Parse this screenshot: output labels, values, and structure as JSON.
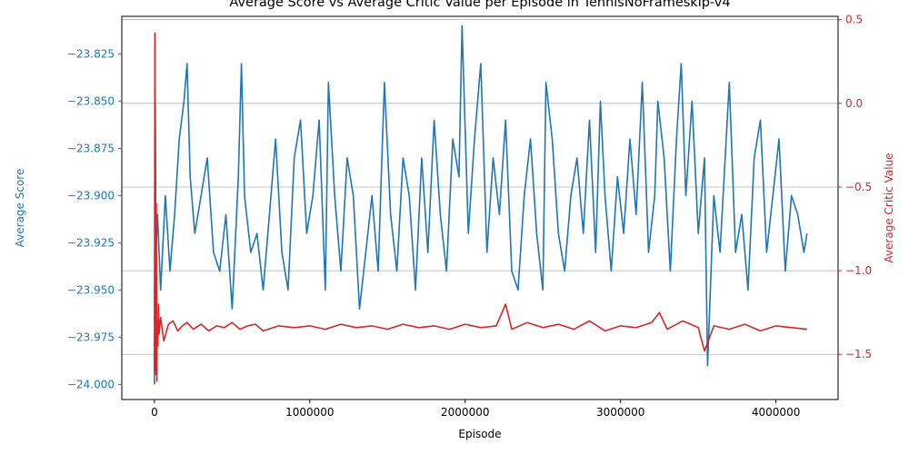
{
  "chart_data": {
    "type": "line",
    "title": "Average Score vs Average Critic Value per Episode in TennisNoFrameskip-v4",
    "xlabel": "Episode",
    "ylabel_left": "Average Score",
    "ylabel_right": "Average Critic Value",
    "xlim": [
      -210000,
      4400000
    ],
    "ylim_left": [
      -24.008,
      -23.805
    ],
    "ylim_right": [
      -1.77,
      0.52
    ],
    "x_ticks": [
      0,
      1000000,
      2000000,
      3000000,
      4000000
    ],
    "x_tick_labels": [
      "0",
      "1000000",
      "2000000",
      "3000000",
      "4000000"
    ],
    "y_left_ticks": [
      -23.825,
      -23.85,
      -23.875,
      -23.9,
      -23.925,
      -23.95,
      -23.975,
      -24.0
    ],
    "y_left_tick_labels": [
      "−23.825",
      "−23.850",
      "−23.875",
      "−23.900",
      "−23.925",
      "−23.950",
      "−23.975",
      "−24.000"
    ],
    "y_right_ticks": [
      0.5,
      0.0,
      -0.5,
      -1.0,
      -1.5
    ],
    "y_right_tick_labels": [
      "0.5",
      "0.0",
      "−0.5",
      "−1.0",
      "−1.5"
    ],
    "grid": "y-right",
    "colors": {
      "left": "#1f77b4",
      "right": "#d62728",
      "grid": "#b0b0b0"
    },
    "series": [
      {
        "axis": "left",
        "color": "#1f77b4",
        "x": [
          0,
          5000,
          10000,
          20000,
          40000,
          70000,
          100000,
          130000,
          160000,
          190000,
          210000,
          230000,
          260000,
          300000,
          340000,
          380000,
          420000,
          460000,
          500000,
          540000,
          560000,
          580000,
          620000,
          660000,
          700000,
          740000,
          780000,
          820000,
          860000,
          900000,
          940000,
          980000,
          1020000,
          1060000,
          1100000,
          1120000,
          1160000,
          1200000,
          1240000,
          1280000,
          1320000,
          1360000,
          1400000,
          1440000,
          1480000,
          1520000,
          1560000,
          1600000,
          1640000,
          1680000,
          1720000,
          1760000,
          1800000,
          1840000,
          1880000,
          1920000,
          1960000,
          1980000,
          2020000,
          2060000,
          2100000,
          2140000,
          2180000,
          2220000,
          2260000,
          2300000,
          2340000,
          2380000,
          2420000,
          2460000,
          2500000,
          2520000,
          2560000,
          2600000,
          2640000,
          2680000,
          2720000,
          2760000,
          2800000,
          2840000,
          2870000,
          2900000,
          2940000,
          2980000,
          3020000,
          3060000,
          3100000,
          3140000,
          3180000,
          3220000,
          3240000,
          3280000,
          3320000,
          3360000,
          3390000,
          3420000,
          3460000,
          3500000,
          3540000,
          3560000,
          3600000,
          3640000,
          3680000,
          3700000,
          3740000,
          3780000,
          3820000,
          3860000,
          3900000,
          3940000,
          3980000,
          4020000,
          4060000,
          4100000,
          4140000,
          4180000,
          4200000
        ],
        "y": [
          -24.0,
          -23.85,
          -23.93,
          -23.91,
          -23.95,
          -23.9,
          -23.94,
          -23.91,
          -23.87,
          -23.85,
          -23.83,
          -23.89,
          -23.92,
          -23.9,
          -23.88,
          -23.93,
          -23.94,
          -23.91,
          -23.96,
          -23.89,
          -23.83,
          -23.9,
          -23.93,
          -23.92,
          -23.95,
          -23.91,
          -23.87,
          -23.93,
          -23.95,
          -23.88,
          -23.86,
          -23.92,
          -23.9,
          -23.86,
          -23.95,
          -23.84,
          -23.9,
          -23.94,
          -23.88,
          -23.9,
          -23.96,
          -23.93,
          -23.9,
          -23.94,
          -23.84,
          -23.91,
          -23.94,
          -23.88,
          -23.9,
          -23.95,
          -23.88,
          -23.93,
          -23.86,
          -23.91,
          -23.94,
          -23.87,
          -23.89,
          -23.81,
          -23.92,
          -23.87,
          -23.83,
          -23.93,
          -23.88,
          -23.91,
          -23.86,
          -23.94,
          -23.95,
          -23.9,
          -23.87,
          -23.92,
          -23.95,
          -23.84,
          -23.87,
          -23.92,
          -23.94,
          -23.9,
          -23.88,
          -23.92,
          -23.86,
          -23.93,
          -23.85,
          -23.9,
          -23.94,
          -23.89,
          -23.92,
          -23.87,
          -23.91,
          -23.84,
          -23.93,
          -23.9,
          -23.85,
          -23.88,
          -23.94,
          -23.87,
          -23.83,
          -23.9,
          -23.85,
          -23.92,
          -23.88,
          -23.99,
          -23.9,
          -23.93,
          -23.87,
          -23.84,
          -23.93,
          -23.91,
          -23.95,
          -23.88,
          -23.86,
          -23.93,
          -23.9,
          -23.87,
          -23.94,
          -23.9,
          -23.91,
          -23.93,
          -23.92
        ]
      },
      {
        "axis": "right",
        "color": "#d62728",
        "x": [
          0,
          3000,
          6000,
          9000,
          12000,
          15000,
          18000,
          22000,
          26000,
          30000,
          40000,
          60000,
          90000,
          120000,
          150000,
          180000,
          210000,
          250000,
          300000,
          350000,
          400000,
          450000,
          500000,
          550000,
          600000,
          650000,
          700000,
          800000,
          900000,
          1000000,
          1100000,
          1200000,
          1300000,
          1400000,
          1500000,
          1600000,
          1700000,
          1800000,
          1900000,
          2000000,
          2100000,
          2200000,
          2260000,
          2300000,
          2400000,
          2500000,
          2600000,
          2700000,
          2800000,
          2900000,
          3000000,
          3100000,
          3200000,
          3250000,
          3300000,
          3400000,
          3500000,
          3540000,
          3600000,
          3700000,
          3800000,
          3900000,
          4000000,
          4100000,
          4200000
        ],
        "y": [
          -1.6,
          0.42,
          -0.85,
          -1.62,
          -0.6,
          -1.66,
          -1.3,
          -1.45,
          -1.2,
          -1.38,
          -1.28,
          -1.42,
          -1.32,
          -1.3,
          -1.36,
          -1.33,
          -1.31,
          -1.35,
          -1.32,
          -1.36,
          -1.33,
          -1.34,
          -1.31,
          -1.35,
          -1.33,
          -1.32,
          -1.36,
          -1.33,
          -1.34,
          -1.33,
          -1.35,
          -1.32,
          -1.34,
          -1.33,
          -1.35,
          -1.32,
          -1.34,
          -1.33,
          -1.35,
          -1.32,
          -1.34,
          -1.33,
          -1.2,
          -1.35,
          -1.31,
          -1.34,
          -1.32,
          -1.35,
          -1.3,
          -1.36,
          -1.33,
          -1.34,
          -1.31,
          -1.25,
          -1.35,
          -1.3,
          -1.34,
          -1.48,
          -1.33,
          -1.35,
          -1.32,
          -1.36,
          -1.33,
          -1.34,
          -1.35
        ]
      }
    ]
  }
}
